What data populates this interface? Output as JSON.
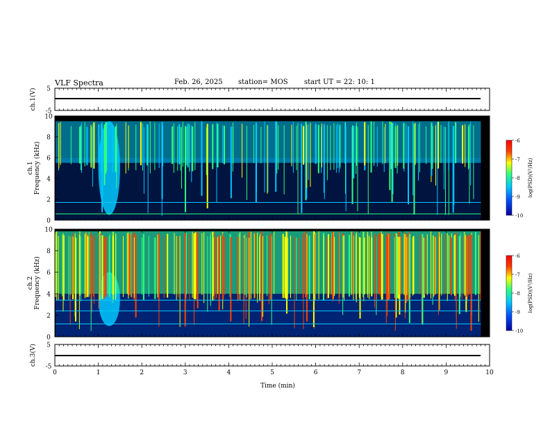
{
  "header": {
    "title": "VLF Spectra",
    "date": "Feb. 26, 2025",
    "station": "station= MOS",
    "start": "start  UT =   22: 10: 1"
  },
  "colors": {
    "background": "#000000",
    "colormap": [
      "#0000a0",
      "#0050ff",
      "#00c8ff",
      "#30ff80",
      "#ffff00",
      "#ff4000",
      "#ff0000"
    ]
  },
  "chart_data": [
    {
      "type": "line",
      "panel": "ch1-waveform",
      "ylabel": "ch.1(V)",
      "ylim": [
        -5,
        5
      ],
      "y_ticks": [
        "5",
        "-5"
      ],
      "x": [
        0,
        10
      ],
      "values": [
        0,
        0
      ]
    },
    {
      "type": "heatmap",
      "panel": "ch1-spectrogram",
      "ylabel": "ch.1\nFrequency (kHz)",
      "xlim": [
        0,
        10
      ],
      "ylim": [
        0,
        10
      ],
      "y_ticks": [
        "0",
        "2",
        "4",
        "6",
        "8",
        "10"
      ],
      "colorbar": {
        "label": "log(PSD)(V²/Hz)",
        "range": [
          -10,
          -6
        ],
        "ticks": [
          "-6",
          "-7",
          "-8",
          "-9",
          "-10"
        ]
      },
      "features": [
        {
          "kind": "broadband-burst",
          "t_min": [
            1.0,
            1.5
          ],
          "f_khz": [
            0.5,
            9.5
          ],
          "level": -8.7
        },
        {
          "kind": "spheric-band",
          "f_khz": [
            5.5,
            9.5
          ],
          "level": -8.3
        },
        {
          "kind": "tone",
          "f_khz": 0.6,
          "level": -8.2
        },
        {
          "kind": "tone",
          "f_khz": 1.7,
          "level": -8.8
        }
      ]
    },
    {
      "type": "heatmap",
      "panel": "ch2-spectrogram",
      "ylabel": "ch.2\nFrequency (kHz)",
      "xlim": [
        0,
        10
      ],
      "ylim": [
        0,
        10
      ],
      "y_ticks": [
        "0",
        "2",
        "4",
        "6",
        "8",
        "10"
      ],
      "colorbar": {
        "label": "log(PSD)(V²/Hz)",
        "range": [
          -10,
          -6
        ],
        "ticks": [
          "-6",
          "-7",
          "-8",
          "-9",
          "-10"
        ]
      },
      "features": [
        {
          "kind": "broadband-burst",
          "t_min": [
            1.0,
            1.5
          ],
          "f_khz": [
            1.0,
            6.0
          ],
          "level": -8.7
        },
        {
          "kind": "spheric-band",
          "f_khz": [
            4.0,
            9.8
          ],
          "level": -7.4
        },
        {
          "kind": "tone",
          "f_khz": 1.2,
          "level": -8.5
        },
        {
          "kind": "tone",
          "f_khz": 2.4,
          "level": -8.8
        },
        {
          "kind": "tone",
          "f_khz": 3.4,
          "level": -8.8
        }
      ]
    },
    {
      "type": "line",
      "panel": "ch3-waveform",
      "ylabel": "ch.3(V)",
      "ylim": [
        -5,
        5
      ],
      "y_ticks": [
        "5",
        "-5"
      ],
      "x": [
        0,
        10
      ],
      "values": [
        0,
        0
      ],
      "xlabel": "Time  (min)",
      "x_ticks": [
        "0",
        "1",
        "2",
        "3",
        "4",
        "5",
        "6",
        "7",
        "8",
        "9",
        "10"
      ]
    }
  ]
}
